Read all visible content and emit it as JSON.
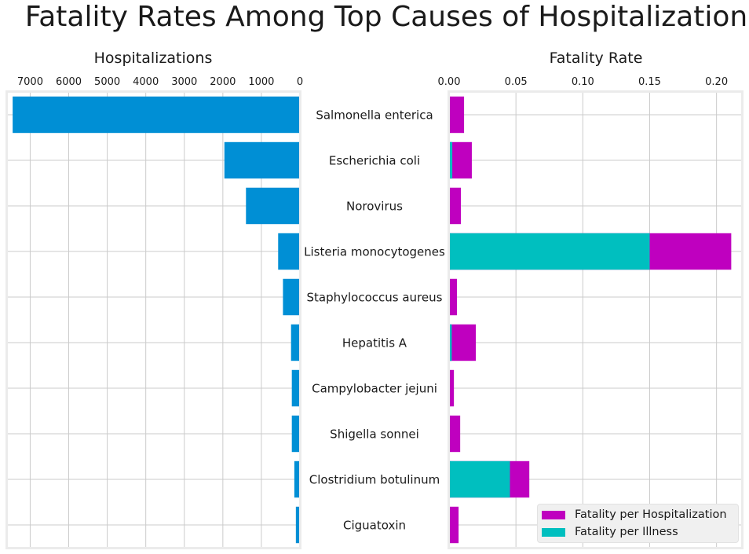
{
  "chart_data": {
    "type": "bar",
    "title": "Fatality Rates Among Top Causes of Hospitalization",
    "categories": [
      "Salmonella enterica",
      "Escherichia coli",
      "Norovirus",
      "Listeria monocytogenes",
      "Staphylococcus aureus",
      "Hepatitis A",
      "Campylobacter jejuni",
      "Shigella sonnei",
      "Clostridium botulinum",
      "Ciguatoxin"
    ],
    "panels": [
      {
        "name": "hospitalizations",
        "title": "Hospitalizations",
        "orientation": "horizontal",
        "x_inverted": true,
        "xlim": [
          0,
          7600
        ],
        "xticks": [
          7000,
          6000,
          5000,
          4000,
          3000,
          2000,
          1000,
          0
        ],
        "xtick_labels": [
          "7000",
          "6000",
          "5000",
          "4000",
          "3000",
          "2000",
          "1000",
          "0"
        ],
        "grid": true,
        "color": "#008fd5",
        "values": [
          7455,
          1960,
          1400,
          565,
          440,
          230,
          210,
          210,
          145,
          105
        ]
      },
      {
        "name": "fatality-rate",
        "title": "Fatality Rate",
        "orientation": "horizontal",
        "stacked": true,
        "xlim": [
          0,
          0.219
        ],
        "xticks": [
          0.0,
          0.05,
          0.1,
          0.15,
          0.2
        ],
        "xtick_labels": [
          "0.00",
          "0.05",
          "0.10",
          "0.15",
          "0.20"
        ],
        "grid": true,
        "legend_position": "lower-right",
        "series": [
          {
            "name": "Fatality per Illness",
            "color": "#00bfbf",
            "values": [
              0.0005,
              0.0024,
              0.0001,
              0.15,
              0.0001,
              0.002,
              0.0001,
              0.0001,
              0.0455,
              0.0001
            ]
          },
          {
            "name": "Fatality per Hospitalization",
            "color": "#bf00bf",
            "values": [
              0.0112,
              0.017,
              0.0088,
              0.211,
              0.0059,
              0.02,
              0.0036,
              0.0083,
              0.06,
              0.0071
            ]
          }
        ]
      }
    ],
    "legend": [
      {
        "label": "Fatality per Hospitalization",
        "color": "#bf00bf"
      },
      {
        "label": "Fatality per Illness",
        "color": "#00bfbf"
      }
    ]
  }
}
